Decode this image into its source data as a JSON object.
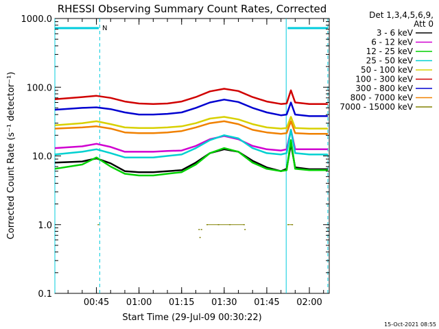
{
  "chart_data": {
    "type": "line",
    "title": "RHESSI Observing Summary Count Rates, Corrected",
    "xlabel": "Start Time (29-Jul-09 00:30:22)",
    "ylabel": "Corrected Count Rate (s⁻¹ detector⁻¹)",
    "yscale": "log",
    "ylim": [
      0.1,
      1000
    ],
    "xlim": [
      "00:30:22",
      "02:07:00"
    ],
    "y_tick_labels": [
      "0.1",
      "1.0",
      "10.0",
      "100.0",
      "1000.0"
    ],
    "x_tick_labels": [
      "00:45",
      "01:00",
      "01:15",
      "01:30",
      "01:45",
      "02:00"
    ],
    "legend_header": "Det 1,3,4,5,6,9,",
    "legend_subheader": "Att 0",
    "legend_position": "right",
    "timestamp": "15-Oct-2021 08:55",
    "flag_letter": "N",
    "night_intervals": [
      [
        "00:30:22",
        "00:46:10"
      ],
      [
        "01:51:50",
        "02:06:30"
      ]
    ],
    "flag_bars": [
      [
        "00:30:22",
        "00:45:50"
      ],
      [
        "01:52:20",
        "02:06:30"
      ]
    ],
    "series": [
      {
        "name": "3 - 6 keV",
        "color": "#000000",
        "points": [
          [
            "00:30:22",
            8.0
          ],
          [
            "00:40:00",
            8.3
          ],
          [
            "00:45:00",
            9.2
          ],
          [
            "00:50:00",
            7.8
          ],
          [
            "00:55:00",
            6.0
          ],
          [
            "01:00:00",
            5.8
          ],
          [
            "01:05:00",
            5.8
          ],
          [
            "01:10:00",
            6.0
          ],
          [
            "01:15:00",
            6.2
          ],
          [
            "01:20:00",
            8.0
          ],
          [
            "01:25:00",
            11.0
          ],
          [
            "01:30:00",
            12.5
          ],
          [
            "01:35:00",
            11.5
          ],
          [
            "01:40:00",
            8.5
          ],
          [
            "01:45:00",
            6.8
          ],
          [
            "01:50:00",
            6.0
          ],
          [
            "01:52:00",
            6.5
          ],
          [
            "01:53:30",
            15.0
          ],
          [
            "01:55:00",
            6.8
          ],
          [
            "02:00:00",
            6.4
          ],
          [
            "02:06:30",
            6.4
          ]
        ]
      },
      {
        "name": "6 - 12 keV",
        "color": "#d000d0",
        "points": [
          [
            "00:30:22",
            13.0
          ],
          [
            "00:40:00",
            13.8
          ],
          [
            "00:45:00",
            15.0
          ],
          [
            "00:50:00",
            13.5
          ],
          [
            "00:55:00",
            11.5
          ],
          [
            "01:00:00",
            11.5
          ],
          [
            "01:05:00",
            11.5
          ],
          [
            "01:10:00",
            11.8
          ],
          [
            "01:15:00",
            12.0
          ],
          [
            "01:20:00",
            14.0
          ],
          [
            "01:25:00",
            17.5
          ],
          [
            "01:30:00",
            19.5
          ],
          [
            "01:35:00",
            17.5
          ],
          [
            "01:40:00",
            14.0
          ],
          [
            "01:45:00",
            12.5
          ],
          [
            "01:50:00",
            12.0
          ],
          [
            "01:52:00",
            12.5
          ],
          [
            "01:53:30",
            24.0
          ],
          [
            "01:55:00",
            12.5
          ],
          [
            "02:00:00",
            12.5
          ],
          [
            "02:06:30",
            12.5
          ]
        ]
      },
      {
        "name": "12 - 25 keV",
        "color": "#00d000",
        "points": [
          [
            "00:30:22",
            6.5
          ],
          [
            "00:40:00",
            7.5
          ],
          [
            "00:45:00",
            9.5
          ],
          [
            "00:50:00",
            7.0
          ],
          [
            "00:55:00",
            5.5
          ],
          [
            "01:00:00",
            5.2
          ],
          [
            "01:05:00",
            5.2
          ],
          [
            "01:10:00",
            5.5
          ],
          [
            "01:15:00",
            5.8
          ],
          [
            "01:20:00",
            7.5
          ],
          [
            "01:25:00",
            11.0
          ],
          [
            "01:30:00",
            13.0
          ],
          [
            "01:35:00",
            11.5
          ],
          [
            "01:40:00",
            8.0
          ],
          [
            "01:45:00",
            6.5
          ],
          [
            "01:50:00",
            6.0
          ],
          [
            "01:52:00",
            6.2
          ],
          [
            "01:53:30",
            17.0
          ],
          [
            "01:55:00",
            6.5
          ],
          [
            "02:00:00",
            6.2
          ],
          [
            "02:06:30",
            6.2
          ]
        ]
      },
      {
        "name": "25 - 50 keV",
        "color": "#00d0d0",
        "points": [
          [
            "00:30:22",
            10.5
          ],
          [
            "00:40:00",
            11.5
          ],
          [
            "00:45:00",
            12.5
          ],
          [
            "00:50:00",
            11.0
          ],
          [
            "00:55:00",
            9.5
          ],
          [
            "01:00:00",
            9.5
          ],
          [
            "01:05:00",
            9.5
          ],
          [
            "01:10:00",
            10.0
          ],
          [
            "01:15:00",
            10.5
          ],
          [
            "01:20:00",
            13.0
          ],
          [
            "01:25:00",
            17.0
          ],
          [
            "01:30:00",
            20.0
          ],
          [
            "01:35:00",
            18.0
          ],
          [
            "01:40:00",
            13.0
          ],
          [
            "01:45:00",
            11.0
          ],
          [
            "01:50:00",
            10.5
          ],
          [
            "01:52:00",
            11.0
          ],
          [
            "01:53:30",
            24.0
          ],
          [
            "01:55:00",
            11.0
          ],
          [
            "02:00:00",
            10.5
          ],
          [
            "02:06:30",
            10.5
          ]
        ]
      },
      {
        "name": "50 - 100 keV",
        "color": "#d8d000",
        "points": [
          [
            "00:30:22",
            28.0
          ],
          [
            "00:40:00",
            30.0
          ],
          [
            "00:45:00",
            32.0
          ],
          [
            "00:50:00",
            29.0
          ],
          [
            "00:55:00",
            26.0
          ],
          [
            "01:00:00",
            25.5
          ],
          [
            "01:05:00",
            25.5
          ],
          [
            "01:10:00",
            26.0
          ],
          [
            "01:15:00",
            27.0
          ],
          [
            "01:20:00",
            30.0
          ],
          [
            "01:25:00",
            35.0
          ],
          [
            "01:30:00",
            37.0
          ],
          [
            "01:35:00",
            34.0
          ],
          [
            "01:40:00",
            29.0
          ],
          [
            "01:45:00",
            26.0
          ],
          [
            "01:50:00",
            25.0
          ],
          [
            "01:52:00",
            25.5
          ],
          [
            "01:53:30",
            37.0
          ],
          [
            "01:55:00",
            25.5
          ],
          [
            "02:00:00",
            25.0
          ],
          [
            "02:06:30",
            25.0
          ]
        ]
      },
      {
        "name": "100 - 300 keV",
        "color": "#d00000",
        "points": [
          [
            "00:30:22",
            67.0
          ],
          [
            "00:40:00",
            72.0
          ],
          [
            "00:45:00",
            75.0
          ],
          [
            "00:50:00",
            70.0
          ],
          [
            "00:55:00",
            62.0
          ],
          [
            "01:00:00",
            58.0
          ],
          [
            "01:05:00",
            57.0
          ],
          [
            "01:10:00",
            58.0
          ],
          [
            "01:15:00",
            62.0
          ],
          [
            "01:20:00",
            72.0
          ],
          [
            "01:25:00",
            87.0
          ],
          [
            "01:30:00",
            95.0
          ],
          [
            "01:35:00",
            88.0
          ],
          [
            "01:40:00",
            72.0
          ],
          [
            "01:45:00",
            62.0
          ],
          [
            "01:50:00",
            57.0
          ],
          [
            "01:52:00",
            58.0
          ],
          [
            "01:53:30",
            90.0
          ],
          [
            "01:55:00",
            60.0
          ],
          [
            "02:00:00",
            57.0
          ],
          [
            "02:06:30",
            57.0
          ]
        ]
      },
      {
        "name": "300 - 800 keV",
        "color": "#0000d0",
        "points": [
          [
            "00:30:22",
            47.0
          ],
          [
            "00:40:00",
            50.0
          ],
          [
            "00:45:00",
            51.0
          ],
          [
            "00:50:00",
            48.0
          ],
          [
            "00:55:00",
            43.0
          ],
          [
            "01:00:00",
            40.0
          ],
          [
            "01:05:00",
            40.0
          ],
          [
            "01:10:00",
            41.0
          ],
          [
            "01:15:00",
            43.0
          ],
          [
            "01:20:00",
            50.0
          ],
          [
            "01:25:00",
            60.0
          ],
          [
            "01:30:00",
            66.0
          ],
          [
            "01:35:00",
            61.0
          ],
          [
            "01:40:00",
            50.0
          ],
          [
            "01:45:00",
            43.0
          ],
          [
            "01:50:00",
            39.0
          ],
          [
            "01:52:00",
            40.0
          ],
          [
            "01:53:30",
            60.0
          ],
          [
            "01:55:00",
            40.0
          ],
          [
            "02:00:00",
            38.0
          ],
          [
            "02:06:30",
            38.0
          ]
        ]
      },
      {
        "name": "800 - 7000 keV",
        "color": "#f08000",
        "points": [
          [
            "00:30:22",
            25.0
          ],
          [
            "00:40:00",
            26.0
          ],
          [
            "00:45:00",
            27.0
          ],
          [
            "00:50:00",
            25.0
          ],
          [
            "00:55:00",
            22.0
          ],
          [
            "01:00:00",
            21.5
          ],
          [
            "01:05:00",
            21.5
          ],
          [
            "01:10:00",
            22.0
          ],
          [
            "01:15:00",
            23.0
          ],
          [
            "01:20:00",
            26.0
          ],
          [
            "01:25:00",
            30.0
          ],
          [
            "01:30:00",
            32.0
          ],
          [
            "01:35:00",
            29.0
          ],
          [
            "01:40:00",
            24.0
          ],
          [
            "01:45:00",
            22.0
          ],
          [
            "01:50:00",
            21.0
          ],
          [
            "01:52:00",
            21.5
          ],
          [
            "01:53:30",
            32.0
          ],
          [
            "01:55:00",
            21.5
          ],
          [
            "02:00:00",
            21.0
          ],
          [
            "02:06:30",
            21.0
          ]
        ]
      },
      {
        "name": "7000 - 15000 keV",
        "color": "#808000",
        "points": [
          [
            "00:45:40",
            1.0
          ],
          [
            "01:21:10",
            0.85
          ],
          [
            "01:21:30",
            0.65
          ],
          [
            "01:22:00",
            0.85
          ],
          [
            "01:24:00",
            1.0
          ],
          [
            "01:28:00",
            1.0
          ],
          [
            "01:32:00",
            1.0
          ],
          [
            "01:37:00",
            1.0
          ],
          [
            "01:37:20",
            0.85
          ],
          [
            "01:52:30",
            1.0
          ],
          [
            "01:54:00",
            1.0
          ]
        ]
      }
    ]
  }
}
